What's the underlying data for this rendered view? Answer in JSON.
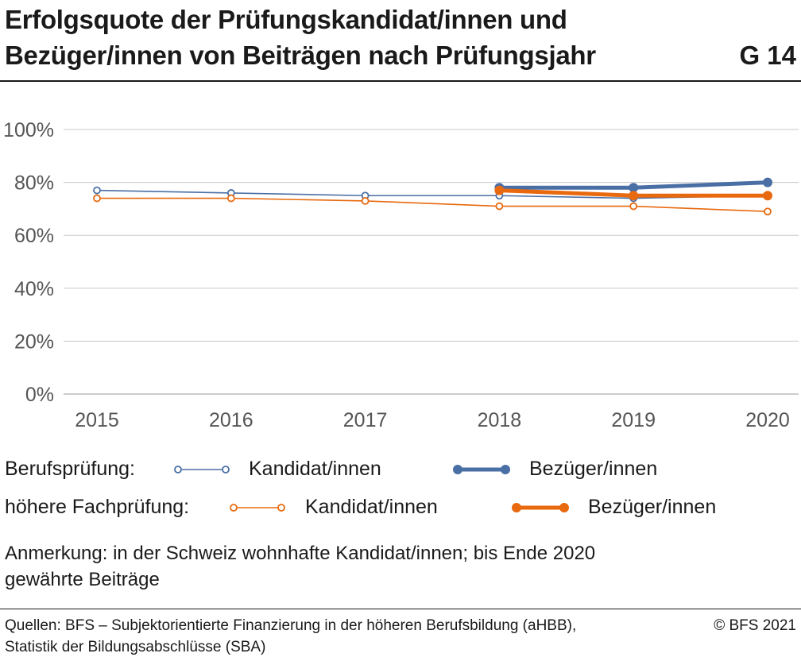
{
  "header": {
    "title_line1": "Erfolgsquote der Prüfungskandidat/innen und",
    "title_line2": "Bezüger/innen von Beiträgen nach Prüfungsjahr",
    "figure_number": "G 14"
  },
  "colors": {
    "blue": "#4a6fa5",
    "orange": "#e8690e",
    "grid": "#c8c8c8",
    "axis_text": "#555555"
  },
  "chart_data": {
    "type": "line",
    "x": [
      2015,
      2016,
      2017,
      2018,
      2019,
      2020
    ],
    "x_tick_labels": [
      "2015",
      "2016",
      "2017",
      "2018",
      "2019",
      "2020"
    ],
    "ylim": [
      0,
      100
    ],
    "y_ticks": [
      0,
      20,
      40,
      60,
      80,
      100
    ],
    "y_tick_labels": [
      "0%",
      "20%",
      "40%",
      "60%",
      "80%",
      "100%"
    ],
    "grid": "horizontal",
    "legend_position": "bottom",
    "series": [
      {
        "group": "Berufsprüfung",
        "name": "Kandidat/innen",
        "color": "#4a6fa5",
        "marker": "hollow",
        "width": "thin",
        "x": [
          2015,
          2016,
          2017,
          2018,
          2019,
          2020
        ],
        "values": [
          77,
          76,
          75,
          75,
          74,
          75
        ]
      },
      {
        "group": "höhere Fachprüfung",
        "name": "Kandidat/innen",
        "color": "#e8690e",
        "marker": "hollow",
        "width": "thin",
        "x": [
          2015,
          2016,
          2017,
          2018,
          2019,
          2020
        ],
        "values": [
          74,
          74,
          73,
          71,
          71,
          69
        ]
      },
      {
        "group": "Berufsprüfung",
        "name": "Bezüger/innen",
        "color": "#4a6fa5",
        "marker": "filled",
        "width": "thick",
        "x": [
          2018,
          2019,
          2020
        ],
        "values": [
          78,
          78,
          80
        ]
      },
      {
        "group": "höhere Fachprüfung",
        "name": "Bezüger/innen",
        "color": "#e8690e",
        "marker": "filled",
        "width": "thick",
        "x": [
          2018,
          2019,
          2020
        ],
        "values": [
          77,
          75,
          75
        ]
      }
    ]
  },
  "legend": {
    "row1_group": "Berufsprüfung:",
    "row1_item1": "Kandidat/innen",
    "row1_item2": "Bezüger/innen",
    "row2_group": "höhere Fachprüfung:",
    "row2_item1": "Kandidat/innen",
    "row2_item2": "Bezüger/innen"
  },
  "note": {
    "line1": "Anmerkung: in der Schweiz wohnhafte Kandidat/innen; bis Ende 2020",
    "line2": "gewährte Beiträge"
  },
  "footer": {
    "source_line1": "Quellen: BFS – Subjektorientierte Finanzierung in der höheren Berufsbildung (aHBB),",
    "source_line2": "Statistik der Bildungsabschlüsse (SBA)",
    "copyright": "© BFS 2021"
  }
}
